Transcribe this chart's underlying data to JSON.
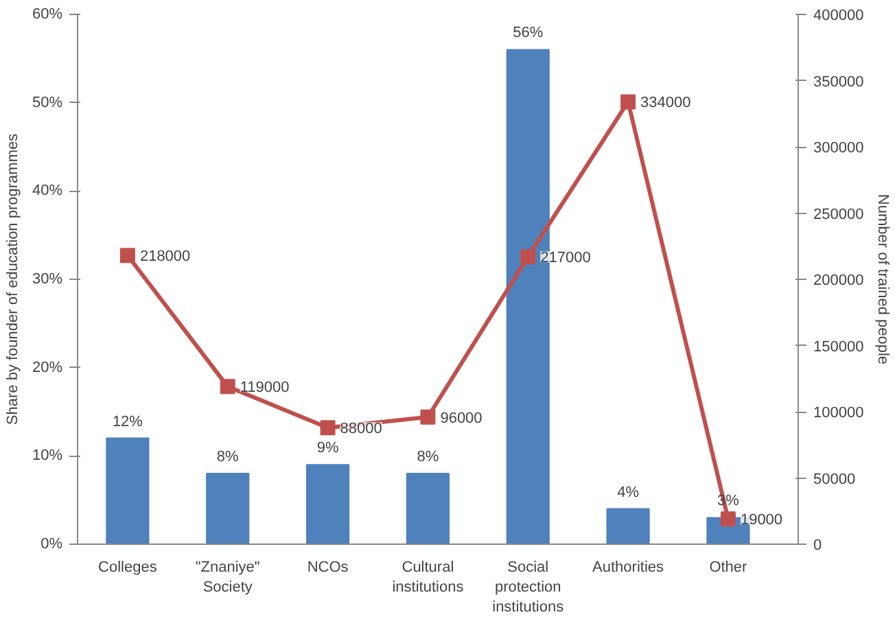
{
  "chart_data": {
    "type": "bar",
    "categories": [
      "Colleges",
      "\"Znaniye\"\nSociety",
      "NCOs",
      "Cultural\ninstitutions",
      "Social\nprotection\ninstitutions",
      "Authorities",
      "Other"
    ],
    "ylabel": "Share by founder of education programmes",
    "y2label": "Number of trained people",
    "ylim": [
      0,
      60
    ],
    "yticks": [
      {
        "value": 0,
        "label": "0%"
      },
      {
        "value": 10,
        "label": "10%"
      },
      {
        "value": 20,
        "label": "20%"
      },
      {
        "value": 30,
        "label": "30%"
      },
      {
        "value": 40,
        "label": "40%"
      },
      {
        "value": 50,
        "label": "50%"
      },
      {
        "value": 60,
        "label": "60%"
      }
    ],
    "y2lim": [
      0,
      400000
    ],
    "y2ticks": [
      0,
      50000,
      100000,
      150000,
      200000,
      250000,
      300000,
      350000,
      400000
    ],
    "grid": false,
    "series": [
      {
        "color": "#4f81bd",
        "values": [
          12,
          8,
          9,
          8,
          56,
          4,
          3
        ],
        "value_labels": [
          "12%",
          "8%",
          "9%",
          "8%",
          "56%",
          "4%",
          "3%"
        ]
      },
      {
        "type": "line",
        "axis": "y2",
        "color": "#c0504d",
        "marker": "square",
        "line_style": "solid",
        "values": [
          218000,
          119000,
          88000,
          96000,
          217000,
          334000,
          19000
        ],
        "value_labels": [
          "218000",
          "119000",
          "88000",
          "96000",
          "217000",
          "334000",
          "19000"
        ]
      }
    ]
  }
}
